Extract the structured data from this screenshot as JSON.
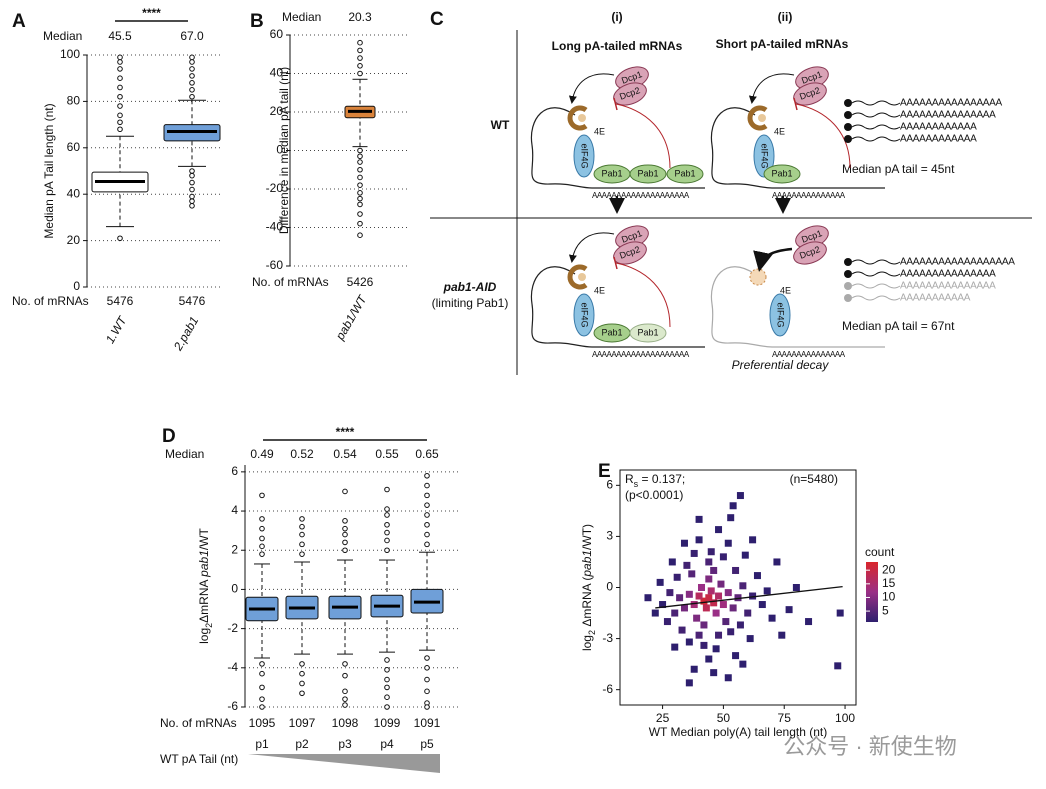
{
  "chart_data": [
    {
      "type": "box",
      "panel": "A",
      "ylabel": "Median pA Tail length (nt)",
      "ylim": [
        0,
        100
      ],
      "yticks": [
        0,
        20,
        40,
        60,
        80,
        100
      ],
      "grid": true,
      "categories": [
        "1.WT",
        "2.pab1"
      ],
      "significance": "****",
      "median_row": {
        "label": "Median",
        "values": [
          45.5,
          67.0
        ],
        "value_labels": [
          "45.5",
          "67.0"
        ]
      },
      "counts_row": {
        "label": "No. of mRNAs",
        "values": [
          5476,
          5476
        ]
      },
      "boxes": [
        {
          "color": "#ffffff",
          "low": 26,
          "q1": 41,
          "median": 45.5,
          "q3": 49.5,
          "high": 65,
          "outliers": [
            21,
            68,
            71,
            74,
            78,
            82,
            86,
            90,
            94,
            97,
            99
          ]
        },
        {
          "color": "#6f9fd8",
          "low": 52,
          "q1": 63,
          "median": 67,
          "q3": 70,
          "high": 80.5,
          "outliers": [
            35,
            37,
            39,
            42,
            45,
            48,
            50,
            82,
            85,
            88,
            91,
            94,
            97,
            99
          ]
        }
      ]
    },
    {
      "type": "box",
      "panel": "B",
      "ylabel": "Difference in median pA tail (nt)",
      "ylim": [
        -60,
        60
      ],
      "yticks": [
        -60,
        -40,
        -20,
        0,
        20,
        40,
        60
      ],
      "grid": true,
      "categories": [
        "pab1/WT"
      ],
      "median_row": {
        "label": "Median",
        "values": [
          20.3
        ]
      },
      "counts_row": {
        "label": "No. of mRNAs",
        "values": [
          5426
        ]
      },
      "boxes": [
        {
          "color": "#d9833b",
          "low": 2,
          "q1": 17,
          "median": 20.3,
          "q3": 23,
          "high": 37,
          "outliers": [
            -44,
            -38,
            -33,
            -28,
            -25,
            -22,
            -18,
            -14,
            -10,
            -6,
            -3,
            0,
            40,
            44,
            48,
            52,
            56
          ]
        }
      ]
    },
    {
      "type": "box",
      "panel": "D",
      "ylabel": [
        "log",
        "2",
        "ΔmRNA ",
        "pab1",
        "/WT"
      ],
      "ylim": [
        -6,
        6.35
      ],
      "yticks": [
        -6,
        -4,
        -2,
        0,
        2,
        4,
        6
      ],
      "grid": true,
      "categories": [
        "p1",
        "p2",
        "p3",
        "p4",
        "p5"
      ],
      "significance": "****",
      "tail_label": "WT pA Tail (nt)",
      "median_row": {
        "label": "Median",
        "values": [
          0.49,
          0.52,
          0.54,
          0.55,
          0.65
        ]
      },
      "counts_row": {
        "label": "No. of mRNAs",
        "values": [
          1095,
          1097,
          1098,
          1099,
          1091
        ]
      },
      "boxes": [
        {
          "color": "#6f9fd8",
          "low": -3.5,
          "q1": -1.6,
          "median": -1.0,
          "q3": -0.4,
          "high": 1.3,
          "outliers": [
            1.8,
            2.2,
            2.6,
            3.1,
            3.6,
            4.8,
            -3.8,
            -4.3,
            -5.0,
            -5.6,
            -6.0
          ]
        },
        {
          "color": "#6f9fd8",
          "low": -3.3,
          "q1": -1.5,
          "median": -0.95,
          "q3": -0.35,
          "high": 1.4,
          "outliers": [
            1.8,
            2.3,
            2.8,
            3.2,
            3.6,
            -3.8,
            -4.3,
            -4.8,
            -5.3
          ]
        },
        {
          "color": "#6f9fd8",
          "low": -3.3,
          "q1": -1.5,
          "median": -0.9,
          "q3": -0.35,
          "high": 1.5,
          "outliers": [
            2.0,
            2.4,
            2.8,
            3.1,
            3.5,
            5.0,
            -3.8,
            -4.4,
            -5.2,
            -5.6,
            -5.9
          ]
        },
        {
          "color": "#6f9fd8",
          "low": -3.2,
          "q1": -1.4,
          "median": -0.85,
          "q3": -0.3,
          "high": 1.5,
          "outliers": [
            2.0,
            2.5,
            2.9,
            3.3,
            3.8,
            4.1,
            5.1,
            -3.6,
            -4.1,
            -4.6,
            -5.0,
            -5.5,
            -6.0
          ]
        },
        {
          "color": "#6f9fd8",
          "low": -3.1,
          "q1": -1.2,
          "median": -0.65,
          "q3": 0,
          "high": 1.9,
          "outliers": [
            2.3,
            2.8,
            3.3,
            3.8,
            4.3,
            4.8,
            5.3,
            5.8,
            -3.5,
            -4.0,
            -4.6,
            -5.2,
            -5.8,
            -6.0
          ]
        }
      ]
    },
    {
      "type": "scatter",
      "panel": "E",
      "xlabel": "WT Median poly(A) tail length (nt)",
      "ylabel": [
        "log",
        "2",
        " ΔmRNA (",
        "pab1",
        "/WT)"
      ],
      "xlim": [
        7.5,
        104.5
      ],
      "ylim": [
        -6.9,
        6.9
      ],
      "xticks": [
        25,
        50,
        75,
        100
      ],
      "yticks": [
        -6,
        -3,
        0,
        3,
        6
      ],
      "stat_label": [
        "R",
        "s",
        " = 0.137;"
      ],
      "p_label": "(p<0.0001)",
      "n_label": "(n=5480)",
      "color_scale": {
        "label": "count",
        "colors": [
          "#2e1f6e",
          "#9a2f86",
          "#d9262c"
        ],
        "lim": [
          1,
          23
        ],
        "ticks": [
          5,
          10,
          15,
          20
        ]
      },
      "x": [
        42,
        44,
        46,
        40,
        48,
        43,
        45,
        38,
        50,
        41,
        47,
        36,
        52,
        44,
        39,
        49,
        34,
        54,
        42,
        46,
        32,
        56,
        37,
        51,
        30,
        58,
        44,
        40,
        48,
        35,
        55,
        28,
        60,
        33,
        53,
        45,
        38,
        27,
        62,
        50,
        31,
        57,
        42,
        47,
        36,
        52,
        40,
        25,
        64,
        66,
        29,
        59,
        44,
        55,
        48,
        34,
        24,
        68,
        70,
        22,
        61,
        30,
        46,
        53,
        40,
        54,
        57,
        52,
        38,
        36,
        74,
        77,
        80,
        72,
        98,
        97,
        19,
        85,
        62,
        58
      ],
      "values": [
        -0.8,
        -0.6,
        -0.9,
        -0.5,
        -0.5,
        -1.2,
        -0.2,
        -1.0,
        -1.0,
        0.0,
        -1.5,
        -0.4,
        -0.3,
        0.5,
        -1.8,
        0.2,
        -1.2,
        -1.2,
        -2.2,
        1.0,
        -0.6,
        -0.6,
        0.8,
        -2.0,
        -1.5,
        0.1,
        1.5,
        -2.8,
        -2.8,
        1.3,
        1.0,
        -0.3,
        -1.5,
        -2.5,
        -2.6,
        2.1,
        2.0,
        -2.0,
        -0.5,
        1.8,
        0.6,
        -2.2,
        -3.4,
        -3.6,
        -3.2,
        2.6,
        2.8,
        -1.0,
        0.7,
        -1.0,
        1.5,
        1.9,
        -4.2,
        -4.0,
        3.4,
        2.6,
        0.3,
        -0.2,
        -1.8,
        -1.5,
        -3.0,
        -3.5,
        -5.0,
        4.1,
        4.0,
        4.8,
        5.4,
        -5.3,
        -4.8,
        -5.6,
        -2.8,
        -1.3,
        0.0,
        1.5,
        -1.5,
        -4.6,
        -0.6,
        -2.0,
        2.8,
        -4.5
      ],
      "count": [
        22,
        20,
        19,
        17,
        16,
        18,
        15,
        14,
        13,
        12,
        12,
        10,
        10,
        9,
        9,
        8,
        8,
        7,
        7,
        6,
        6,
        6,
        5,
        5,
        4,
        4,
        4,
        4,
        3,
        3,
        3,
        3,
        3,
        3,
        2,
        2,
        2,
        2,
        2,
        2,
        2,
        2,
        2,
        1,
        1,
        1,
        1,
        1,
        1,
        1,
        1,
        1,
        1,
        1,
        1,
        1,
        1,
        1,
        1,
        1,
        1,
        1,
        1,
        1,
        1,
        1,
        1,
        1,
        1,
        1,
        1,
        1,
        1,
        1,
        1,
        1,
        1,
        1,
        1,
        1
      ],
      "fit": {
        "x": [
          22,
          99
        ],
        "values": [
          -1.2,
          0.05
        ]
      }
    }
  ],
  "diagram": {
    "panel": "C",
    "columns": [
      "(i)",
      "(ii)"
    ],
    "column_titles": [
      "Long pA-tailed mRNAs",
      "Short pA-tailed mRNAs"
    ],
    "rows": [
      "WT",
      "pab1-AID"
    ],
    "row_note": "(limiting Pab1)",
    "proteins": {
      "dcp1": "Dcp1",
      "dcp2": "Dcp2",
      "cap": "4E",
      "eif4g": "eIF4G",
      "pab1": "Pab1"
    },
    "poly_a": [
      "AAAAAAAAAAAAAAAAAAAA",
      "AAAAAAAAAAAAAAA"
    ],
    "tails": [
      [
        "AAAAAAAAAAAAAAAA",
        "AAAAAAAAAAAAAAA",
        "AAAAAAAAAAAA",
        "AAAAAAAAAAAA"
      ],
      [
        "AAAAAAAAAAAAAAAAAA",
        "AAAAAAAAAAAAAAA",
        "AAAAAAAAAAAAAAA",
        "AAAAAAAAAAA"
      ]
    ],
    "summaries": [
      "Median pA tail = 45nt",
      "Median pA tail = 67nt"
    ],
    "decay_note": "Preferential decay"
  },
  "watermark": "公众号 · 新使生物"
}
